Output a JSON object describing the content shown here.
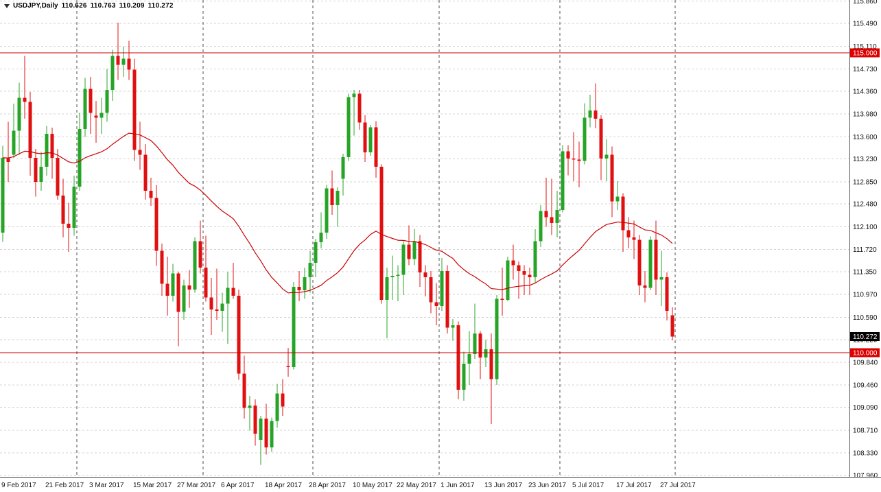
{
  "window": {
    "background": "#ffffff"
  },
  "header": {
    "symbol_label": "USDJPY,Daily",
    "open": "110.626",
    "high": "110.763",
    "low": "110.209",
    "close": "110.272"
  },
  "colors": {
    "background": "#ffffff",
    "up": "#27a427",
    "down": "#e01010",
    "ma_line": "#cc0000",
    "hline": "#cc0000",
    "hline_badge": "#dd0000",
    "last_badge": "#000000",
    "grid": "#d3d3d3",
    "separator": "#4d4d4d",
    "axis_line": "#5a5a5a",
    "axis_text": "#111111"
  },
  "price_axis": {
    "labels": [
      "115.860",
      "115.490",
      "115.110",
      "114.730",
      "114.360",
      "113.980",
      "113.600",
      "113.230",
      "112.850",
      "112.480",
      "112.100",
      "111.720",
      "111.350",
      "110.970",
      "110.590",
      "110.220",
      "109.840",
      "109.460",
      "109.090",
      "108.710",
      "108.330",
      "107.960"
    ]
  },
  "time_axis": {
    "labels": [
      {
        "text": "9 Feb 2017",
        "bar": 0
      },
      {
        "text": "21 Feb 2017",
        "bar": 8
      },
      {
        "text": "3 Mar 2017",
        "bar": 16
      },
      {
        "text": "15 Mar 2017",
        "bar": 24
      },
      {
        "text": "27 Mar 2017",
        "bar": 32
      },
      {
        "text": "6 Apr 2017",
        "bar": 40
      },
      {
        "text": "18 Apr 2017",
        "bar": 48
      },
      {
        "text": "28 Apr 2017",
        "bar": 56
      },
      {
        "text": "10 May 2017",
        "bar": 64
      },
      {
        "text": "22 May 2017",
        "bar": 72
      },
      {
        "text": "1 Jun 2017",
        "bar": 80
      },
      {
        "text": "13 Jun 2017",
        "bar": 88
      },
      {
        "text": "23 Jun 2017",
        "bar": 96
      },
      {
        "text": "5 Jul 2017",
        "bar": 104
      },
      {
        "text": "17 Jul 2017",
        "bar": 112
      },
      {
        "text": "27 Jul 2017",
        "bar": 120
      }
    ]
  },
  "chart_data": {
    "type": "candlestick",
    "symbol": "USDJPY",
    "timeframe": "Daily",
    "price_range": {
      "top": 115.88,
      "bottom": 107.93
    },
    "ylim": [
      107.93,
      115.88
    ],
    "ma": {
      "period": 40,
      "method": "ema"
    },
    "horizontal_lines": [
      {
        "value": 115.0,
        "label": "115.000"
      },
      {
        "value": 110.0,
        "label": "110.000"
      }
    ],
    "last_price": 110.272,
    "last_price_label": "110.272",
    "month_separator_bars": [
      14,
      37,
      57,
      80,
      102,
      123
    ],
    "candles": [
      [
        112.0,
        113.45,
        111.85,
        113.25
      ],
      [
        113.25,
        113.85,
        112.85,
        113.18
      ],
      [
        113.3,
        114.15,
        113.25,
        113.7
      ],
      [
        113.7,
        114.5,
        113.3,
        114.25
      ],
      [
        114.25,
        114.95,
        113.9,
        114.18
      ],
      [
        114.18,
        114.35,
        112.95,
        113.25
      ],
      [
        113.25,
        113.4,
        112.6,
        112.85
      ],
      [
        112.85,
        113.35,
        112.7,
        113.1
      ],
      [
        113.1,
        113.78,
        112.95,
        113.65
      ],
      [
        113.65,
        113.75,
        112.9,
        113.25
      ],
      [
        113.25,
        113.4,
        112.55,
        112.62
      ],
      [
        112.62,
        112.9,
        111.92,
        112.15
      ],
      [
        112.15,
        112.5,
        111.68,
        112.08
      ],
      [
        112.08,
        112.95,
        111.95,
        112.77
      ],
      [
        112.77,
        114.0,
        112.7,
        113.73
      ],
      [
        113.73,
        114.58,
        113.6,
        114.4
      ],
      [
        114.4,
        114.6,
        113.65,
        114.0
      ],
      [
        113.95,
        114.2,
        113.5,
        113.92
      ],
      [
        113.92,
        114.25,
        113.65,
        114.0
      ],
      [
        114.0,
        114.73,
        113.85,
        114.38
      ],
      [
        114.38,
        115.05,
        114.2,
        114.95
      ],
      [
        114.95,
        115.5,
        114.55,
        114.8
      ],
      [
        114.8,
        115.1,
        114.6,
        114.9
      ],
      [
        114.9,
        115.2,
        114.55,
        114.72
      ],
      [
        114.72,
        114.9,
        113.2,
        113.38
      ],
      [
        113.38,
        113.85,
        113.05,
        113.3
      ],
      [
        113.3,
        113.48,
        112.55,
        112.7
      ],
      [
        112.7,
        112.92,
        112.45,
        112.58
      ],
      [
        112.58,
        112.8,
        111.45,
        111.7
      ],
      [
        111.7,
        111.82,
        110.95,
        111.15
      ],
      [
        111.15,
        111.6,
        110.62,
        110.95
      ],
      [
        110.95,
        111.48,
        110.85,
        111.32
      ],
      [
        111.32,
        111.35,
        110.11,
        110.68
      ],
      [
        110.68,
        111.22,
        110.55,
        111.12
      ],
      [
        111.12,
        111.38,
        110.75,
        111.05
      ],
      [
        111.05,
        111.92,
        111.0,
        111.86
      ],
      [
        111.86,
        112.2,
        111.32,
        111.42
      ],
      [
        111.42,
        111.95,
        110.85,
        110.92
      ],
      [
        110.92,
        111.25,
        110.3,
        110.72
      ],
      [
        110.72,
        111.4,
        110.55,
        110.7
      ],
      [
        110.7,
        111.0,
        110.35,
        110.82
      ],
      [
        110.82,
        111.35,
        110.15,
        111.08
      ],
      [
        111.08,
        111.5,
        110.9,
        110.95
      ],
      [
        110.95,
        111.05,
        109.55,
        109.65
      ],
      [
        109.65,
        109.95,
        108.9,
        109.08
      ],
      [
        109.08,
        109.28,
        108.7,
        109.12
      ],
      [
        109.12,
        109.22,
        108.45,
        108.65
      ],
      [
        108.55,
        108.95,
        108.13,
        108.9
      ],
      [
        108.9,
        109.15,
        108.3,
        108.42
      ],
      [
        108.42,
        108.92,
        108.35,
        108.86
      ],
      [
        108.86,
        109.48,
        108.75,
        109.32
      ],
      [
        109.32,
        109.56,
        108.95,
        109.1
      ],
      [
        109.78,
        110.08,
        109.6,
        109.76
      ],
      [
        109.76,
        111.18,
        109.72,
        111.1
      ],
      [
        111.1,
        111.36,
        110.86,
        111.04
      ],
      [
        111.04,
        111.42,
        110.9,
        111.26
      ],
      [
        111.26,
        111.7,
        111.0,
        111.5
      ],
      [
        111.5,
        111.9,
        111.26,
        111.84
      ],
      [
        111.84,
        112.34,
        111.74,
        112.0
      ],
      [
        112.0,
        112.8,
        111.9,
        112.74
      ],
      [
        112.74,
        113.04,
        112.3,
        112.46
      ],
      [
        112.46,
        112.76,
        112.1,
        112.7
      ],
      [
        112.9,
        113.32,
        112.62,
        113.26
      ],
      [
        113.26,
        114.32,
        113.2,
        114.26
      ],
      [
        114.26,
        114.38,
        113.62,
        114.32
      ],
      [
        114.32,
        114.38,
        113.72,
        113.84
      ],
      [
        113.84,
        113.96,
        113.18,
        113.34
      ],
      [
        113.34,
        113.8,
        113.28,
        113.76
      ],
      [
        113.76,
        113.86,
        112.92,
        113.1
      ],
      [
        113.1,
        113.14,
        110.82,
        110.88
      ],
      [
        110.88,
        111.42,
        110.24,
        111.26
      ],
      [
        111.26,
        111.62,
        110.88,
        111.28
      ],
      [
        111.28,
        111.46,
        110.86,
        111.3
      ],
      [
        111.3,
        111.86,
        110.96,
        111.8
      ],
      [
        111.8,
        112.12,
        111.46,
        111.56
      ],
      [
        111.56,
        112.06,
        111.46,
        111.86
      ],
      [
        111.86,
        111.96,
        111.1,
        111.34
      ],
      [
        111.34,
        111.46,
        110.94,
        111.26
      ],
      [
        111.26,
        111.36,
        110.66,
        110.84
      ],
      [
        110.84,
        111.16,
        110.46,
        110.78
      ],
      [
        110.78,
        111.58,
        110.7,
        111.36
      ],
      [
        111.36,
        111.46,
        110.32,
        110.42
      ],
      [
        110.42,
        110.56,
        110.2,
        110.46
      ],
      [
        110.46,
        110.52,
        109.22,
        109.38
      ],
      [
        109.38,
        110.02,
        109.2,
        109.82
      ],
      [
        109.82,
        110.36,
        109.46,
        109.98
      ],
      [
        109.98,
        110.82,
        109.9,
        110.32
      ],
      [
        110.32,
        110.36,
        109.56,
        109.92
      ],
      [
        109.92,
        110.22,
        109.76,
        110.06
      ],
      [
        110.06,
        110.32,
        108.81,
        109.56
      ],
      [
        109.56,
        110.96,
        109.46,
        110.9
      ],
      [
        110.9,
        111.42,
        110.62,
        110.88
      ],
      [
        110.88,
        111.6,
        110.86,
        111.54
      ],
      [
        111.54,
        111.8,
        111.22,
        111.46
      ],
      [
        111.46,
        111.52,
        110.9,
        111.36
      ],
      [
        111.36,
        111.46,
        110.96,
        111.3
      ],
      [
        111.3,
        111.42,
        110.96,
        111.26
      ],
      [
        111.26,
        112.06,
        111.16,
        111.86
      ],
      [
        111.86,
        112.46,
        111.76,
        112.36
      ],
      [
        112.36,
        112.92,
        112.1,
        112.26
      ],
      [
        112.26,
        112.9,
        111.96,
        112.16
      ],
      [
        112.16,
        112.7,
        111.92,
        112.38
      ],
      [
        112.38,
        113.46,
        112.34,
        113.36
      ],
      [
        113.36,
        113.46,
        112.96,
        113.24
      ],
      [
        113.24,
        113.68,
        112.86,
        113.22
      ],
      [
        113.22,
        113.52,
        112.76,
        113.2
      ],
      [
        113.2,
        114.16,
        113.14,
        113.92
      ],
      [
        113.92,
        114.3,
        113.76,
        114.04
      ],
      [
        114.04,
        114.49,
        113.74,
        113.9
      ],
      [
        113.9,
        113.96,
        112.88,
        113.24
      ],
      [
        113.24,
        113.56,
        112.86,
        113.3
      ],
      [
        113.3,
        113.44,
        112.26,
        112.52
      ],
      [
        112.52,
        112.86,
        112.38,
        112.6
      ],
      [
        112.6,
        112.66,
        111.68,
        112.04
      ],
      [
        112.04,
        112.26,
        111.74,
        111.92
      ],
      [
        111.92,
        112.2,
        111.56,
        111.88
      ],
      [
        111.88,
        111.96,
        110.96,
        111.12
      ],
      [
        111.12,
        111.36,
        110.84,
        111.08
      ],
      [
        111.08,
        111.94,
        111.04,
        111.88
      ],
      [
        111.88,
        112.2,
        110.96,
        111.22
      ],
      [
        111.22,
        111.7,
        110.78,
        111.26
      ],
      [
        111.26,
        111.34,
        110.54,
        110.7
      ],
      [
        110.626,
        110.763,
        110.209,
        110.272
      ]
    ]
  }
}
